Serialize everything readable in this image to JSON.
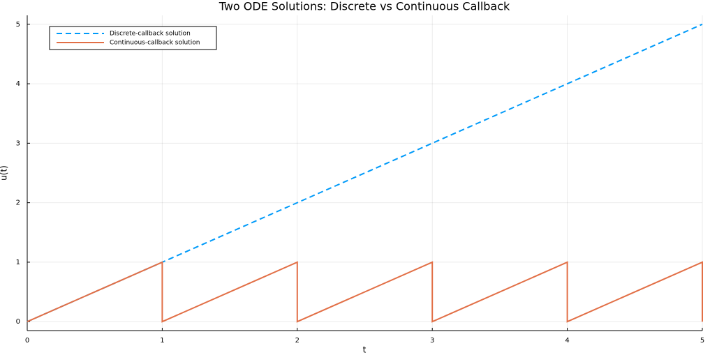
{
  "chart_data": {
    "type": "line",
    "title": "Two ODE Solutions: Discrete vs Continuous Callback",
    "xlabel": "t",
    "ylabel": "u(t)",
    "xlim": [
      0,
      5
    ],
    "xticks": [
      0,
      1,
      2,
      3,
      4,
      5
    ],
    "ylim": [
      -0.15,
      5.15
    ],
    "yticks": [
      0,
      1,
      2,
      3,
      4,
      5
    ],
    "grid": true,
    "legend": "top-left",
    "series": [
      {
        "name": "Discrete-callback solution",
        "color": "#009af9",
        "dash": true,
        "x": [
          0,
          5
        ],
        "values": [
          0,
          5
        ]
      },
      {
        "name": "Continuous-callback solution",
        "color": "#e26f46",
        "dash": false,
        "x": [
          0,
          1,
          1,
          2,
          2,
          3,
          3,
          4,
          4,
          5,
          5
        ],
        "values": [
          0,
          1,
          0,
          1,
          0,
          1,
          0,
          1,
          0,
          1,
          0
        ]
      }
    ]
  }
}
